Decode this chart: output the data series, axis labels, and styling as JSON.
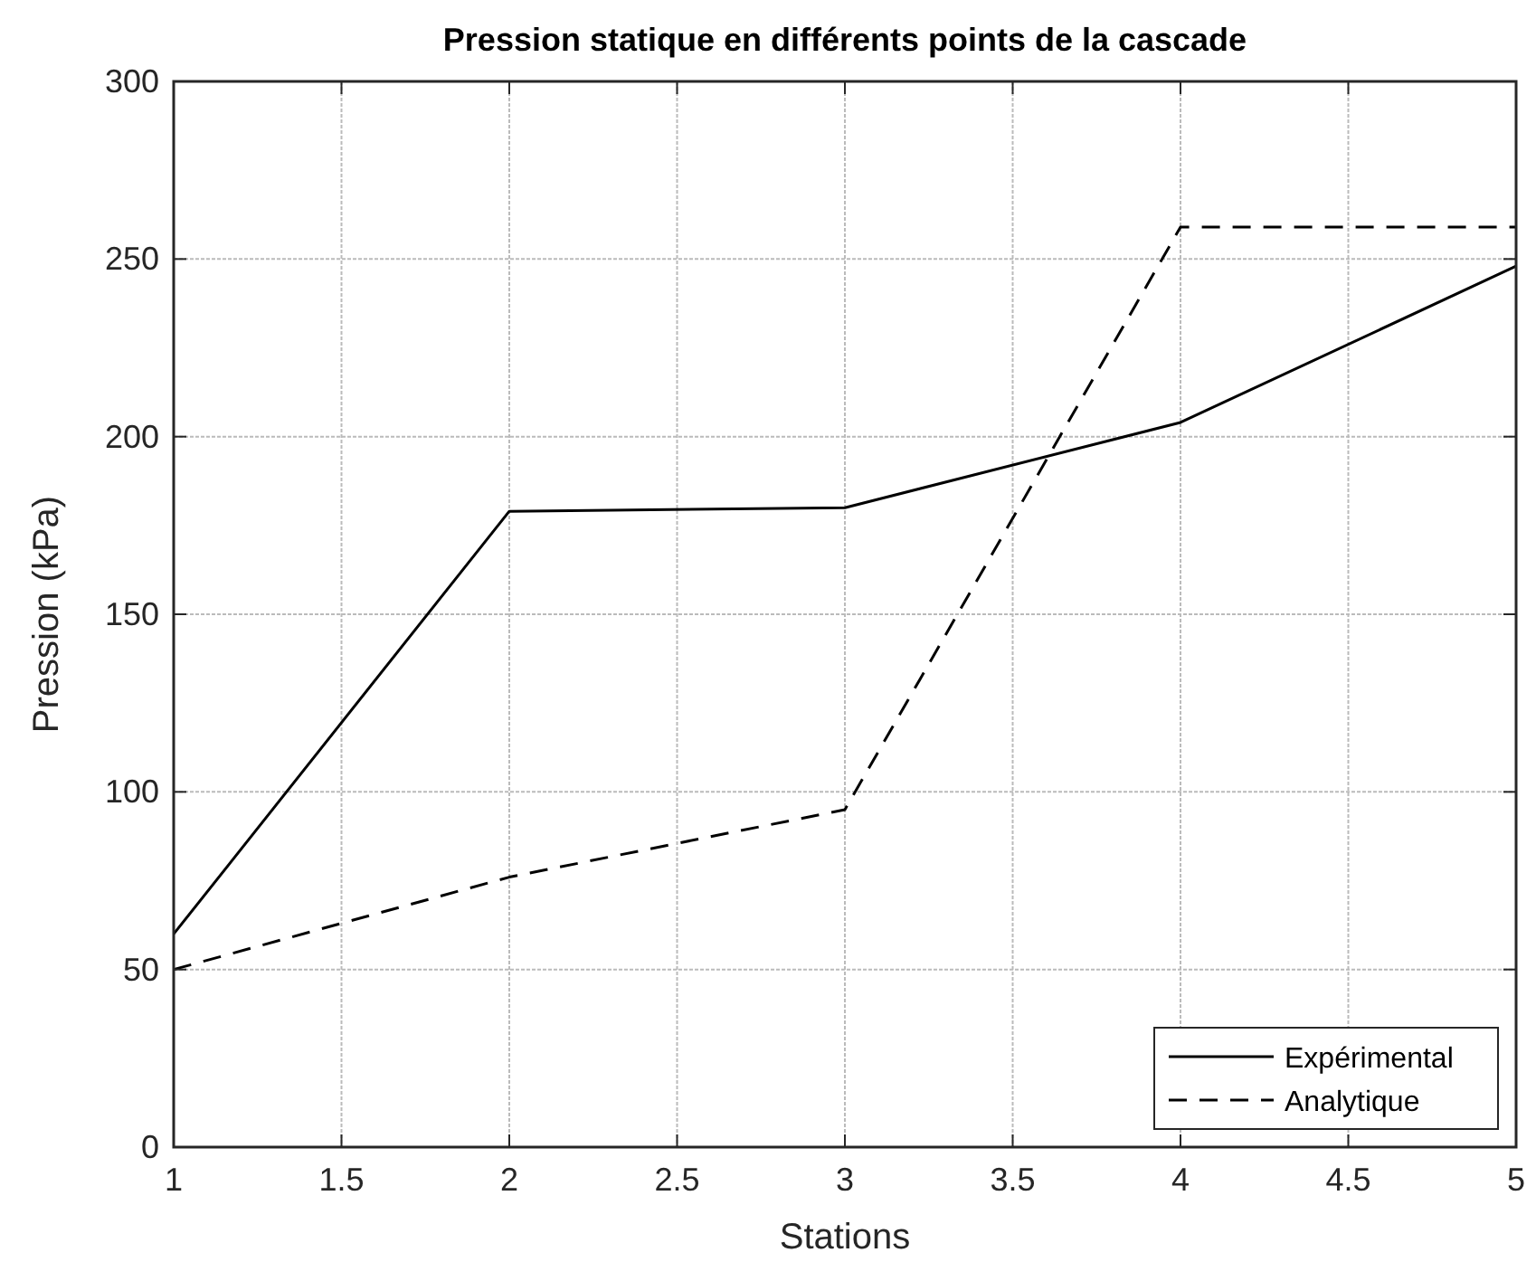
{
  "chart_data": {
    "type": "line",
    "title": "Pression statique en différents points de la cascade",
    "xlabel": "Stations",
    "ylabel": "Pression (kPa)",
    "x": [
      1,
      2,
      3,
      4,
      5
    ],
    "series": [
      {
        "name": "Expérimental",
        "color": "#000000",
        "values": [
          60,
          179,
          180,
          204,
          248
        ],
        "line_style": "solid"
      },
      {
        "name": "Analytique",
        "color": "#000000",
        "values": [
          50,
          76,
          95,
          259,
          259
        ],
        "line_style": "dashed"
      }
    ],
    "xlim": [
      1,
      5
    ],
    "xticks": [
      1,
      1.5,
      2,
      2.5,
      3,
      3.5,
      4,
      4.5,
      5
    ],
    "ylim": [
      0,
      300
    ],
    "yticks": [
      0,
      50,
      100,
      150,
      200,
      250,
      300
    ],
    "grid": true,
    "legend": "bottom right",
    "marker": "none"
  }
}
